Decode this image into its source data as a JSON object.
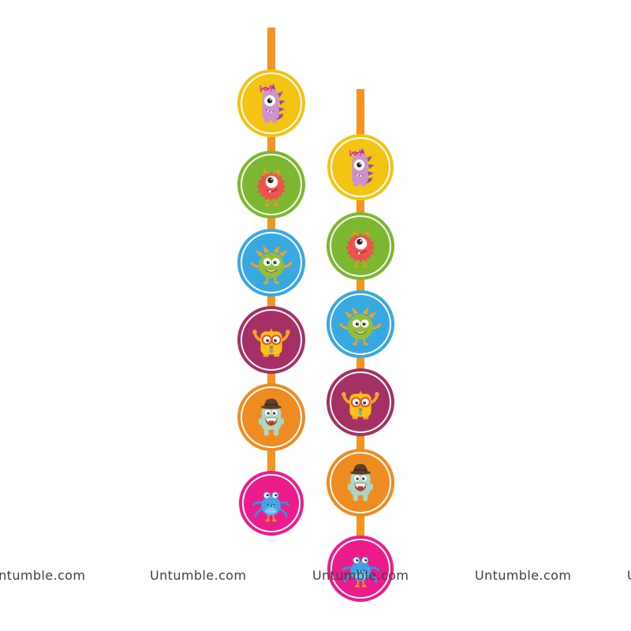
{
  "watermark": {
    "text": "Untumble.com",
    "color": "#3f3f3f"
  },
  "ribbon": {
    "name": "orange-hanging-ribbon",
    "color": "#F7941D"
  },
  "danglers": [
    {
      "name": "left-dangler",
      "circles": [
        {
          "icon": "purple-dino-monster-icon",
          "color": "#F4C414"
        },
        {
          "icon": "red-furry-monster-icon",
          "color": "#7CB82F"
        },
        {
          "icon": "green-horned-monster-icon",
          "color": "#38A8E0"
        },
        {
          "icon": "yellow-square-monster-icon",
          "color": "#A53066"
        },
        {
          "icon": "teal-bowler-monster-icon",
          "color": "#EE8B21"
        },
        {
          "icon": "blue-spider-monster-icon",
          "color": "#EC1C8D"
        }
      ]
    },
    {
      "name": "right-dangler",
      "circles": [
        {
          "icon": "purple-dino-monster-icon",
          "color": "#F4C414"
        },
        {
          "icon": "red-furry-monster-icon",
          "color": "#7CB82F"
        },
        {
          "icon": "green-horned-monster-icon",
          "color": "#38A8E0"
        },
        {
          "icon": "yellow-square-monster-icon",
          "color": "#A53066"
        },
        {
          "icon": "teal-bowler-monster-icon",
          "color": "#EE8B21"
        },
        {
          "icon": "blue-spider-monster-icon",
          "color": "#EC1C8D"
        }
      ]
    }
  ]
}
